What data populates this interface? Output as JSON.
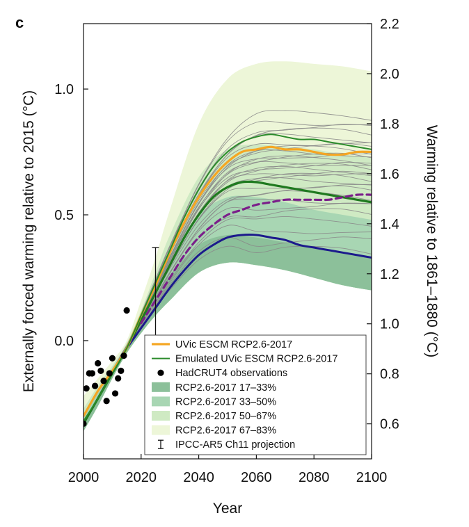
{
  "panel_label": "c",
  "chart_data": {
    "type": "line",
    "title": "",
    "xlabel": "Year",
    "ylabel_left": "Externally forced warming relative to 2015 (°C)",
    "ylabel_right": "Warming relative to 1861–1880 (°C)",
    "xlim": [
      2000,
      2100
    ],
    "ylim_left": [
      -0.47,
      1.26
    ],
    "ylim_right": [
      0.46,
      2.2
    ],
    "x_ticks": [
      2000,
      2020,
      2040,
      2060,
      2080,
      2100
    ],
    "y_ticks_left": [
      0.0,
      0.5,
      1.0
    ],
    "y_ticks_right": [
      0.6,
      0.8,
      1.0,
      1.2,
      1.4,
      1.6,
      1.8,
      2.0,
      2.2
    ],
    "y_tick_labels_left": [
      "0.0",
      "0.5",
      "1.0"
    ],
    "y_tick_labels_right": [
      "0.6",
      "0.8",
      "1.0",
      "1.2",
      "1.4",
      "1.6",
      "1.8",
      "2.0",
      "2.2"
    ],
    "colors": {
      "band_17_33": "#8cc09a",
      "band_33_50": "#a8d6b3",
      "band_50_67": "#cfeac3",
      "band_67_83": "#edf6d8",
      "uvic": "#f5a623",
      "emulated": "#2a8a2a",
      "median": "#1f7a1f",
      "low": "#1c1a8c",
      "dashed": "#7b1f8a",
      "ensemble": "#8a8a8a",
      "obs": "#000000"
    },
    "bands": [
      {
        "name": "RCP2.6-2017 67–83%",
        "x": [
          2000,
          2005,
          2010,
          2015,
          2020,
          2025,
          2030,
          2040,
          2050,
          2060,
          2070,
          2080,
          2090,
          2100
        ],
        "lower": [
          -0.36,
          -0.26,
          -0.15,
          -0.05,
          0.03,
          0.1,
          0.16,
          0.27,
          0.31,
          0.3,
          0.28,
          0.25,
          0.22,
          0.2
        ],
        "upper": [
          -0.22,
          -0.15,
          -0.08,
          0.0,
          0.16,
          0.33,
          0.52,
          0.86,
          1.04,
          1.1,
          1.11,
          1.1,
          1.09,
          1.07
        ]
      },
      {
        "name": "RCP2.6-2017 50–67%",
        "x": [
          2000,
          2005,
          2010,
          2015,
          2020,
          2025,
          2030,
          2040,
          2050,
          2060,
          2070,
          2080,
          2090,
          2100
        ],
        "lower": [
          -0.36,
          -0.26,
          -0.15,
          -0.05,
          0.03,
          0.1,
          0.16,
          0.27,
          0.31,
          0.3,
          0.28,
          0.25,
          0.22,
          0.2
        ],
        "upper": [
          -0.27,
          -0.18,
          -0.1,
          -0.01,
          0.12,
          0.27,
          0.42,
          0.65,
          0.76,
          0.78,
          0.77,
          0.76,
          0.74,
          0.73
        ]
      },
      {
        "name": "RCP2.6-2017 33–50%",
        "x": [
          2000,
          2005,
          2010,
          2015,
          2020,
          2025,
          2030,
          2040,
          2050,
          2060,
          2070,
          2080,
          2090,
          2100
        ],
        "lower": [
          -0.36,
          -0.26,
          -0.15,
          -0.05,
          0.03,
          0.1,
          0.16,
          0.27,
          0.31,
          0.3,
          0.28,
          0.25,
          0.22,
          0.2
        ],
        "upper": [
          -0.3,
          -0.2,
          -0.11,
          -0.02,
          0.1,
          0.22,
          0.34,
          0.5,
          0.57,
          0.57,
          0.55,
          0.52,
          0.5,
          0.48
        ]
      },
      {
        "name": "RCP2.6-2017 17–33%",
        "x": [
          2000,
          2005,
          2010,
          2015,
          2020,
          2025,
          2030,
          2040,
          2050,
          2060,
          2070,
          2080,
          2090,
          2100
        ],
        "lower": [
          -0.36,
          -0.26,
          -0.15,
          -0.05,
          0.03,
          0.1,
          0.16,
          0.27,
          0.31,
          0.3,
          0.28,
          0.25,
          0.22,
          0.2
        ],
        "upper": [
          -0.33,
          -0.22,
          -0.12,
          -0.03,
          0.07,
          0.17,
          0.26,
          0.38,
          0.42,
          0.41,
          0.39,
          0.37,
          0.35,
          0.33
        ]
      }
    ],
    "ensemble_x": [
      2000,
      2010,
      2015,
      2020,
      2025,
      2030,
      2040,
      2050,
      2060,
      2070,
      2080,
      2090,
      2100
    ],
    "ensemble_base": [
      -0.33,
      -0.12,
      -0.02,
      0.09,
      0.21,
      0.33,
      0.54,
      0.68,
      0.73,
      0.74,
      0.74,
      0.74,
      0.73
    ],
    "ensemble_offsets": [
      0.16,
      0.13,
      0.11,
      0.09,
      0.07,
      0.05,
      0.03,
      0.02,
      0.01,
      0.0,
      -0.01,
      -0.02,
      -0.03,
      -0.04,
      -0.05,
      -0.06,
      -0.07,
      -0.08,
      -0.09,
      -0.1,
      -0.12,
      -0.14,
      -0.16,
      -0.18,
      -0.2,
      -0.23,
      -0.26,
      -0.3,
      -0.34,
      -0.38
    ],
    "series": [
      {
        "name": "UVic ESCM RCP2.6-2017",
        "style": "uvic",
        "x": [
          2000,
          2005,
          2010,
          2015,
          2020,
          2025,
          2030,
          2035,
          2040,
          2045,
          2050,
          2055,
          2060,
          2065,
          2070,
          2075,
          2080,
          2085,
          2090,
          2095,
          2100
        ],
        "y": [
          -0.3,
          -0.2,
          -0.12,
          -0.03,
          0.1,
          0.22,
          0.35,
          0.47,
          0.57,
          0.65,
          0.71,
          0.75,
          0.76,
          0.77,
          0.76,
          0.76,
          0.75,
          0.74,
          0.74,
          0.75,
          0.75
        ]
      },
      {
        "name": "Emulated UVic ESCM RCP2.6-2017",
        "style": "emulated",
        "x": [
          2000,
          2005,
          2010,
          2015,
          2020,
          2025,
          2030,
          2035,
          2040,
          2045,
          2050,
          2055,
          2060,
          2065,
          2070,
          2075,
          2080,
          2085,
          2090,
          2095,
          2100
        ],
        "y": [
          -0.32,
          -0.23,
          -0.13,
          -0.03,
          0.1,
          0.23,
          0.36,
          0.49,
          0.6,
          0.69,
          0.75,
          0.79,
          0.81,
          0.82,
          0.81,
          0.8,
          0.8,
          0.79,
          0.78,
          0.77,
          0.76
        ]
      },
      {
        "name": "",
        "style": "median",
        "x": [
          2000,
          2005,
          2010,
          2015,
          2020,
          2025,
          2030,
          2035,
          2040,
          2045,
          2050,
          2055,
          2060,
          2065,
          2070,
          2075,
          2080,
          2085,
          2090,
          2095,
          2100
        ],
        "y": [
          -0.33,
          -0.23,
          -0.13,
          -0.03,
          0.08,
          0.19,
          0.3,
          0.41,
          0.5,
          0.57,
          0.61,
          0.63,
          0.63,
          0.62,
          0.61,
          0.6,
          0.59,
          0.58,
          0.57,
          0.56,
          0.55
        ]
      },
      {
        "name": "",
        "style": "dashed",
        "x": [
          2020,
          2025,
          2030,
          2035,
          2040,
          2045,
          2050,
          2055,
          2060,
          2065,
          2070,
          2075,
          2080,
          2085,
          2090,
          2095,
          2100
        ],
        "y": [
          0.07,
          0.16,
          0.25,
          0.34,
          0.41,
          0.46,
          0.5,
          0.52,
          0.54,
          0.55,
          0.56,
          0.56,
          0.56,
          0.56,
          0.57,
          0.58,
          0.58
        ]
      },
      {
        "name": "",
        "style": "low",
        "x": [
          2015,
          2020,
          2025,
          2030,
          2035,
          2040,
          2045,
          2050,
          2055,
          2060,
          2065,
          2070,
          2075,
          2080,
          2085,
          2090,
          2095,
          2100
        ],
        "y": [
          -0.03,
          0.05,
          0.13,
          0.21,
          0.28,
          0.34,
          0.38,
          0.41,
          0.42,
          0.42,
          0.41,
          0.4,
          0.38,
          0.37,
          0.36,
          0.35,
          0.34,
          0.33
        ]
      }
    ],
    "observations": {
      "name": "HadCRUT4 observations",
      "x": [
        2000,
        2001,
        2002,
        2003,
        2004,
        2005,
        2006,
        2007,
        2008,
        2009,
        2010,
        2011,
        2012,
        2013,
        2014,
        2015
      ],
      "y": [
        -0.33,
        -0.19,
        -0.13,
        -0.13,
        -0.18,
        -0.09,
        -0.12,
        -0.16,
        -0.24,
        -0.13,
        -0.07,
        -0.21,
        -0.15,
        -0.12,
        -0.06,
        0.12
      ]
    },
    "ipcc_range": {
      "name": "IPCC-AR5 Ch11 projection",
      "x": 2025,
      "low": -0.08,
      "high": 0.37
    },
    "legend": {
      "position": "lower-right",
      "entries": [
        {
          "label": "UVic ESCM RCP2.6-2017",
          "kind": "line",
          "style": "uvic"
        },
        {
          "label": "Emulated UVic ESCM RCP2.6-2017",
          "kind": "line",
          "style": "emulated"
        },
        {
          "label": "HadCRUT4 observations",
          "kind": "dot",
          "style": "obs"
        },
        {
          "label": "RCP2.6-2017 17–33%",
          "kind": "patch",
          "style": "band_17_33"
        },
        {
          "label": "RCP2.6-2017 33–50%",
          "kind": "patch",
          "style": "band_33_50"
        },
        {
          "label": "RCP2.6-2017 50–67%",
          "kind": "patch",
          "style": "band_50_67"
        },
        {
          "label": "RCP2.6-2017 67–83%",
          "kind": "patch",
          "style": "band_67_83"
        },
        {
          "label": "IPCC-AR5 Ch11 projection",
          "kind": "errorbar",
          "style": "obs"
        }
      ]
    }
  }
}
